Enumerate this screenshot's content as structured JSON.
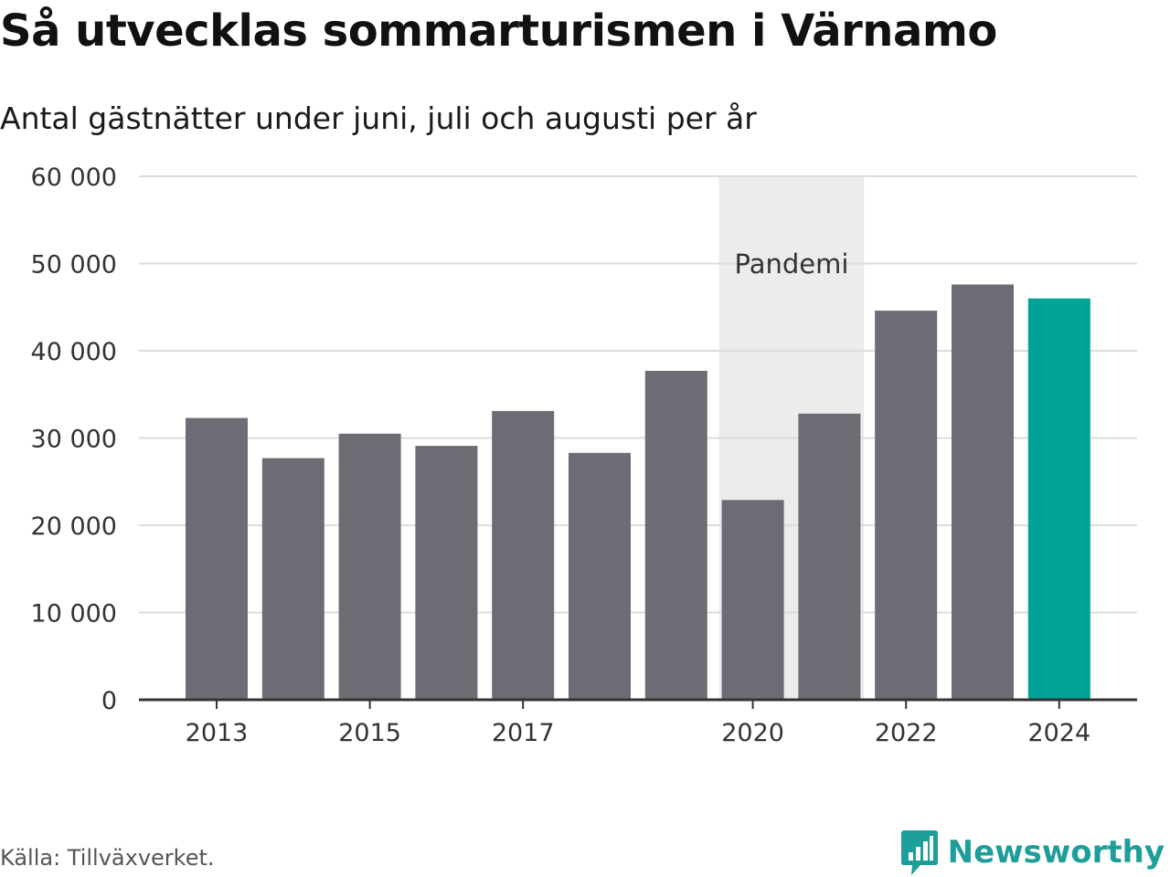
{
  "header": {
    "title": "Så utvecklas sommarturismen i Värnamo",
    "subtitle": "Antal gästnätter under juni, juli och augusti per år"
  },
  "footer": {
    "source": "Källa: Tillväxverket.",
    "brand": "Newsworthy",
    "brand_icon": "newsworthy-logo-icon"
  },
  "colors": {
    "bar": "#6d6c74",
    "highlight": "#00a396",
    "band": "#ececec",
    "grid": "#dcdcdc",
    "axis": "#333333",
    "brand": "#1e9e9a"
  },
  "chart_data": {
    "type": "bar",
    "categories": [
      2013,
      2014,
      2015,
      2016,
      2017,
      2018,
      2019,
      2020,
      2021,
      2022,
      2023,
      2024
    ],
    "values": [
      32300,
      27700,
      30500,
      29100,
      33100,
      28300,
      37700,
      22900,
      32800,
      44600,
      47600,
      46000
    ],
    "highlight_category": 2024,
    "ylim": [
      0,
      60000
    ],
    "yticks": [
      0,
      10000,
      20000,
      30000,
      40000,
      50000,
      60000
    ],
    "ytick_labels": [
      "0",
      "10 000",
      "20 000",
      "30 000",
      "40 000",
      "50 000",
      "60 000"
    ],
    "xticks": [
      2013,
      2015,
      2017,
      2020,
      2022,
      2024
    ],
    "xtick_labels": [
      "2013",
      "2015",
      "2017",
      "2020",
      "2022",
      "2024"
    ],
    "annotation": {
      "label": "Pandemi",
      "from": 2020,
      "to": 2021
    },
    "grid": true,
    "legend": "none"
  }
}
